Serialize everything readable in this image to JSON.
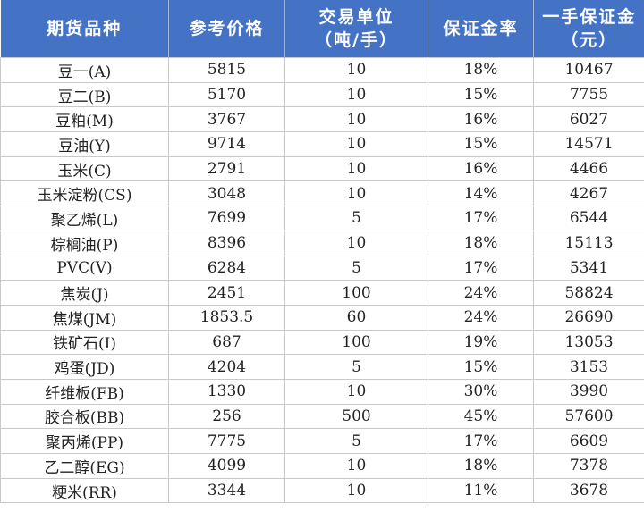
{
  "table": {
    "header": [
      "期货品种",
      "参考价格",
      "交易单位\n（吨/手）",
      "保证金率",
      "一手保证金\n（元）"
    ],
    "rows": [
      [
        "豆一(A)",
        "5815",
        "10",
        "18%",
        "10467"
      ],
      [
        "豆二(B)",
        "5170",
        "10",
        "15%",
        "7755"
      ],
      [
        "豆粕(M)",
        "3767",
        "10",
        "16%",
        "6027"
      ],
      [
        "豆油(Y)",
        "9714",
        "10",
        "15%",
        "14571"
      ],
      [
        "玉米(C)",
        "2791",
        "10",
        "16%",
        "4466"
      ],
      [
        "玉米淀粉(CS)",
        "3048",
        "10",
        "14%",
        "4267"
      ],
      [
        "聚乙烯(L)",
        "7699",
        "5",
        "17%",
        "6544"
      ],
      [
        "棕榈油(P)",
        "8396",
        "10",
        "18%",
        "15113"
      ],
      [
        "PVC(V)",
        "6284",
        "5",
        "17%",
        "5341"
      ],
      [
        "焦炭(J)",
        "2451",
        "100",
        "24%",
        "58824"
      ],
      [
        "焦煤(JM)",
        "1853.5",
        "60",
        "24%",
        "26690"
      ],
      [
        "铁矿石(I)",
        "687",
        "100",
        "19%",
        "13053"
      ],
      [
        "鸡蛋(JD)",
        "4204",
        "5",
        "15%",
        "3153"
      ],
      [
        "纤维板(FB)",
        "1330",
        "10",
        "30%",
        "3990"
      ],
      [
        "胶合板(BB)",
        "256",
        "500",
        "45%",
        "57600"
      ],
      [
        "聚丙烯(PP)",
        "7775",
        "5",
        "17%",
        "6609"
      ],
      [
        "乙二醇(EG)",
        "4099",
        "10",
        "18%",
        "7378"
      ],
      [
        "粳米(RR)",
        "3344",
        "10",
        "11%",
        "3678"
      ]
    ]
  }
}
